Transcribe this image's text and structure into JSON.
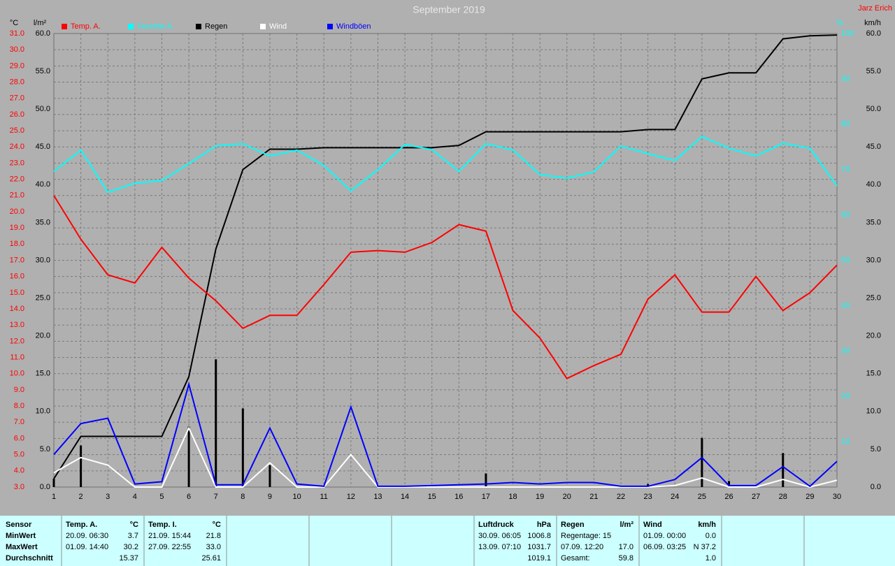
{
  "chart_data": {
    "type": "line",
    "title": "September 2019",
    "author": "Jarz Erich",
    "x": [
      1,
      2,
      3,
      4,
      5,
      6,
      7,
      8,
      9,
      10,
      11,
      12,
      13,
      14,
      15,
      16,
      17,
      18,
      19,
      20,
      21,
      22,
      23,
      24,
      25,
      26,
      27,
      28,
      29,
      30
    ],
    "xlim": [
      1,
      30
    ],
    "ylabel": "°C",
    "ylim": [
      3,
      31
    ],
    "yticks": [
      {
        "value": 3,
        "label": "3.0"
      },
      {
        "value": 4,
        "label": "4.0"
      },
      {
        "value": 5,
        "label": "5.0"
      },
      {
        "value": 6,
        "label": "6.0"
      },
      {
        "value": 7,
        "label": "7.0"
      },
      {
        "value": 8,
        "label": "8.0"
      },
      {
        "value": 9,
        "label": "9.0"
      },
      {
        "value": 10,
        "label": "10.0"
      },
      {
        "value": 11,
        "label": "11.0"
      },
      {
        "value": 12,
        "label": "12.0"
      },
      {
        "value": 13,
        "label": "13.0"
      },
      {
        "value": 14,
        "label": "14.0"
      },
      {
        "value": 15,
        "label": "15.0"
      },
      {
        "value": 16,
        "label": "16.0"
      },
      {
        "value": 17,
        "label": "17.0"
      },
      {
        "value": 18,
        "label": "18.0"
      },
      {
        "value": 19,
        "label": "19.0"
      },
      {
        "value": 20,
        "label": "20.0"
      },
      {
        "value": 21,
        "label": "21.0"
      },
      {
        "value": 22,
        "label": "22.0"
      },
      {
        "value": 23,
        "label": "23.0"
      },
      {
        "value": 24,
        "label": "24.0"
      },
      {
        "value": 25,
        "label": "25.0"
      },
      {
        "value": 26,
        "label": "26.0"
      },
      {
        "value": 27,
        "label": "27.0"
      },
      {
        "value": 28,
        "label": "28.0"
      },
      {
        "value": 29,
        "label": "29.0"
      },
      {
        "value": 30,
        "label": "30.0"
      },
      {
        "value": 31,
        "label": "31.0"
      }
    ],
    "y2label": "l/m²",
    "y2lim": [
      0,
      60
    ],
    "y2ticks": [
      {
        "value": 0,
        "label": "0.0"
      },
      {
        "value": 5,
        "label": "5.0"
      },
      {
        "value": 10,
        "label": "10.0"
      },
      {
        "value": 15,
        "label": "15.0"
      },
      {
        "value": 20,
        "label": "20.0"
      },
      {
        "value": 25,
        "label": "25.0"
      },
      {
        "value": 30,
        "label": "30.0"
      },
      {
        "value": 35,
        "label": "35.0"
      },
      {
        "value": 40,
        "label": "40.0"
      },
      {
        "value": 45,
        "label": "45.0"
      },
      {
        "value": 50,
        "label": "50.0"
      },
      {
        "value": 55,
        "label": "55.0"
      },
      {
        "value": 60,
        "label": "60.0"
      }
    ],
    "y3label": "%",
    "y3lim": [
      0,
      100
    ],
    "y3ticks": [
      10,
      20,
      30,
      40,
      50,
      60,
      70,
      80,
      90,
      100
    ],
    "y4label": "km/h",
    "y4lim": [
      0,
      60
    ],
    "y4ticks": [
      {
        "value": 0,
        "label": "0.0"
      },
      {
        "value": 5,
        "label": "5.0"
      },
      {
        "value": 10,
        "label": "10.0"
      },
      {
        "value": 15,
        "label": "15.0"
      },
      {
        "value": 20,
        "label": "20.0"
      },
      {
        "value": 25,
        "label": "25.0"
      },
      {
        "value": 30,
        "label": "30.0"
      },
      {
        "value": 35,
        "label": "35.0"
      },
      {
        "value": 40,
        "label": "40.0"
      },
      {
        "value": 45,
        "label": "45.0"
      },
      {
        "value": 50,
        "label": "50.0"
      },
      {
        "value": 55,
        "label": "55.0"
      },
      {
        "value": 60,
        "label": "60.0"
      }
    ],
    "grid": true,
    "series": [
      {
        "color": "#000000",
        "type": "bar",
        "axis": "y2",
        "values": [
          1.1,
          5.5,
          0,
          0,
          0,
          8.0,
          16.9,
          10.4,
          2.9,
          0,
          0,
          0,
          0,
          0,
          0,
          0,
          1.8,
          0,
          0,
          0,
          0,
          0,
          0.4,
          0,
          6.5,
          0.8,
          0,
          4.5,
          0,
          0
        ]
      },
      {
        "name": "Regen",
        "color": "#000000",
        "axis": "y2",
        "values": [
          1.1,
          6.7,
          6.7,
          6.7,
          6.7,
          14.6,
          31.5,
          42.0,
          44.7,
          44.7,
          44.9,
          44.9,
          44.9,
          44.9,
          44.9,
          45.2,
          47.0,
          47.0,
          47.0,
          47.0,
          47.0,
          47.0,
          47.3,
          47.3,
          54.0,
          54.8,
          54.8,
          59.3,
          59.7,
          59.8
        ]
      },
      {
        "name": "Feuchte A.",
        "color": "#00ffff",
        "axis": "y3",
        "values": [
          69.6,
          74.3,
          65.0,
          67.0,
          67.6,
          71.3,
          75.2,
          75.7,
          73.0,
          74.3,
          70.9,
          65.3,
          70.0,
          75.5,
          74.4,
          69.6,
          75.7,
          74.3,
          68.9,
          68.1,
          69.5,
          75.2,
          73.5,
          72.0,
          77.3,
          74.7,
          73.0,
          75.8,
          74.7,
          66.4
        ]
      },
      {
        "name": "Temp. A.",
        "color": "#ff0000",
        "axis": "y",
        "values": [
          21.0,
          18.3,
          16.1,
          15.6,
          17.8,
          15.9,
          14.5,
          12.8,
          13.6,
          13.6,
          15.5,
          17.5,
          17.6,
          17.5,
          18.1,
          19.2,
          18.8,
          13.9,
          12.2,
          9.7,
          10.5,
          11.2,
          14.6,
          16.1,
          13.8,
          13.8,
          16.0,
          13.9,
          15.0,
          16.7
        ]
      },
      {
        "name": "Wind",
        "color": "#ffffff",
        "axis": "y4",
        "values": [
          1.9,
          3.9,
          2.9,
          0,
          0,
          7.8,
          0,
          0,
          3.2,
          0,
          0,
          4.3,
          0,
          0,
          0,
          0,
          0,
          0,
          0,
          0,
          0,
          0,
          0,
          0.2,
          1.2,
          0,
          0,
          1.0,
          0,
          0.9
        ]
      },
      {
        "name": "Windböen",
        "color": "#0000ff",
        "axis": "y4",
        "values": [
          4.3,
          8.4,
          9.1,
          0.4,
          0.7,
          13.6,
          0.3,
          0.3,
          7.8,
          0.4,
          0.1,
          10.6,
          0.1,
          0.1,
          0.2,
          0.3,
          0.4,
          0.6,
          0.4,
          0.6,
          0.6,
          0.1,
          0.1,
          1.0,
          3.9,
          0.2,
          0.2,
          2.7,
          0.1,
          3.4
        ]
      }
    ],
    "legend_order": [
      3,
      2,
      1,
      4,
      5
    ]
  },
  "table": {
    "sensor": {
      "header": "Sensor",
      "rows": [
        "MinWert",
        "MaxWert",
        "Durchschnitt"
      ]
    },
    "columns": [
      {
        "slot": 0,
        "header": "Temp. A.",
        "unit": "°C",
        "rows": [
          {
            "left": "20.09.  06:30",
            "right": "3.7"
          },
          {
            "left": "01.09.  14:40",
            "right": "30.2"
          },
          {
            "right": "15.37"
          }
        ]
      },
      {
        "slot": 1,
        "header": "Temp. I.",
        "unit": "°C",
        "rows": [
          {
            "left": "21.09.  15:44",
            "right": "21.8"
          },
          {
            "left": "27.09.  22:55",
            "right": "33.0"
          },
          {
            "right": "25.61"
          }
        ]
      },
      {
        "slot": 5,
        "header": "Luftdruck",
        "unit": "hPa",
        "rows": [
          {
            "left": "30.09.  06:05",
            "right": "1006.8"
          },
          {
            "left": "13.09.  07:10",
            "right": "1031.7"
          },
          {
            "right": "1019.1"
          }
        ]
      },
      {
        "slot": 6,
        "header": "Regen",
        "unit": "l/m²",
        "rows": [
          {
            "left": "Regentage: 15"
          },
          {
            "left": "07.09.  12:20",
            "right": "17.0"
          },
          {
            "left": "Gesamt:",
            "right": "59.8"
          }
        ]
      },
      {
        "slot": 7,
        "header": "Wind",
        "unit": "km/h",
        "rows": [
          {
            "left": "01.09.  00:00",
            "right": "0.0"
          },
          {
            "left": "06.09.  03:25",
            "right": "N 37.2"
          },
          {
            "right": "1.0"
          }
        ]
      }
    ]
  }
}
